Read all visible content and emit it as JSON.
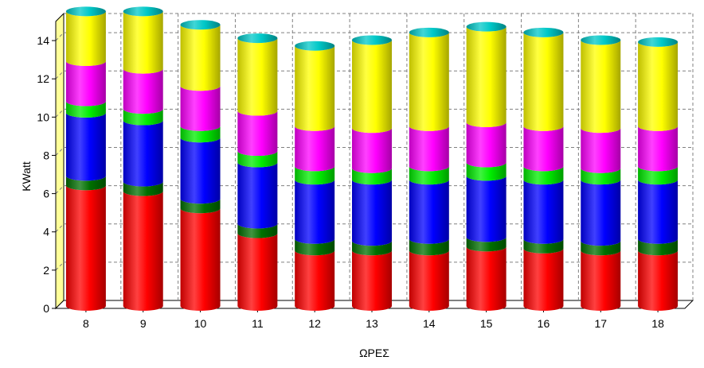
{
  "chart_data": {
    "type": "bar",
    "stacked": true,
    "style": "3d-cylinder",
    "xlabel": "ΩΡΕΣ",
    "ylabel": "KWatt",
    "ylim": [
      0,
      15
    ],
    "yticks": [
      "0",
      "2",
      "4",
      "6",
      "8",
      "10",
      "12",
      "14"
    ],
    "grid": true,
    "grid_style": "dashed",
    "legend": "none",
    "categories": [
      "8",
      "9",
      "10",
      "11",
      "12",
      "13",
      "14",
      "15",
      "16",
      "17",
      "18"
    ],
    "series": [
      {
        "color": "#ff0000",
        "values": [
          6.3,
          6.0,
          5.1,
          3.8,
          2.9,
          2.9,
          2.9,
          3.1,
          3.0,
          2.9,
          2.9
        ]
      },
      {
        "color": "#007000",
        "values": [
          0.5,
          0.5,
          0.5,
          0.5,
          0.6,
          0.5,
          0.6,
          0.5,
          0.5,
          0.5,
          0.6
        ]
      },
      {
        "color": "#0000ff",
        "values": [
          3.3,
          3.2,
          3.2,
          3.2,
          3.1,
          3.2,
          3.1,
          3.2,
          3.1,
          3.2,
          3.1
        ]
      },
      {
        "color": "#00ee00",
        "values": [
          0.6,
          0.6,
          0.6,
          0.6,
          0.7,
          0.6,
          0.7,
          0.7,
          0.7,
          0.6,
          0.7
        ]
      },
      {
        "color": "#ff00ff",
        "values": [
          2.1,
          2.1,
          2.1,
          2.1,
          2.1,
          2.1,
          2.1,
          2.1,
          2.1,
          2.1,
          2.1
        ]
      },
      {
        "color": "#ffff00",
        "values": [
          2.6,
          3.0,
          3.2,
          3.8,
          4.2,
          4.6,
          4.9,
          5.0,
          4.9,
          4.6,
          4.4
        ]
      }
    ],
    "colors": {
      "cap": "#00c8c8",
      "back_wall": "#ffff99",
      "grid": "#808080"
    }
  }
}
